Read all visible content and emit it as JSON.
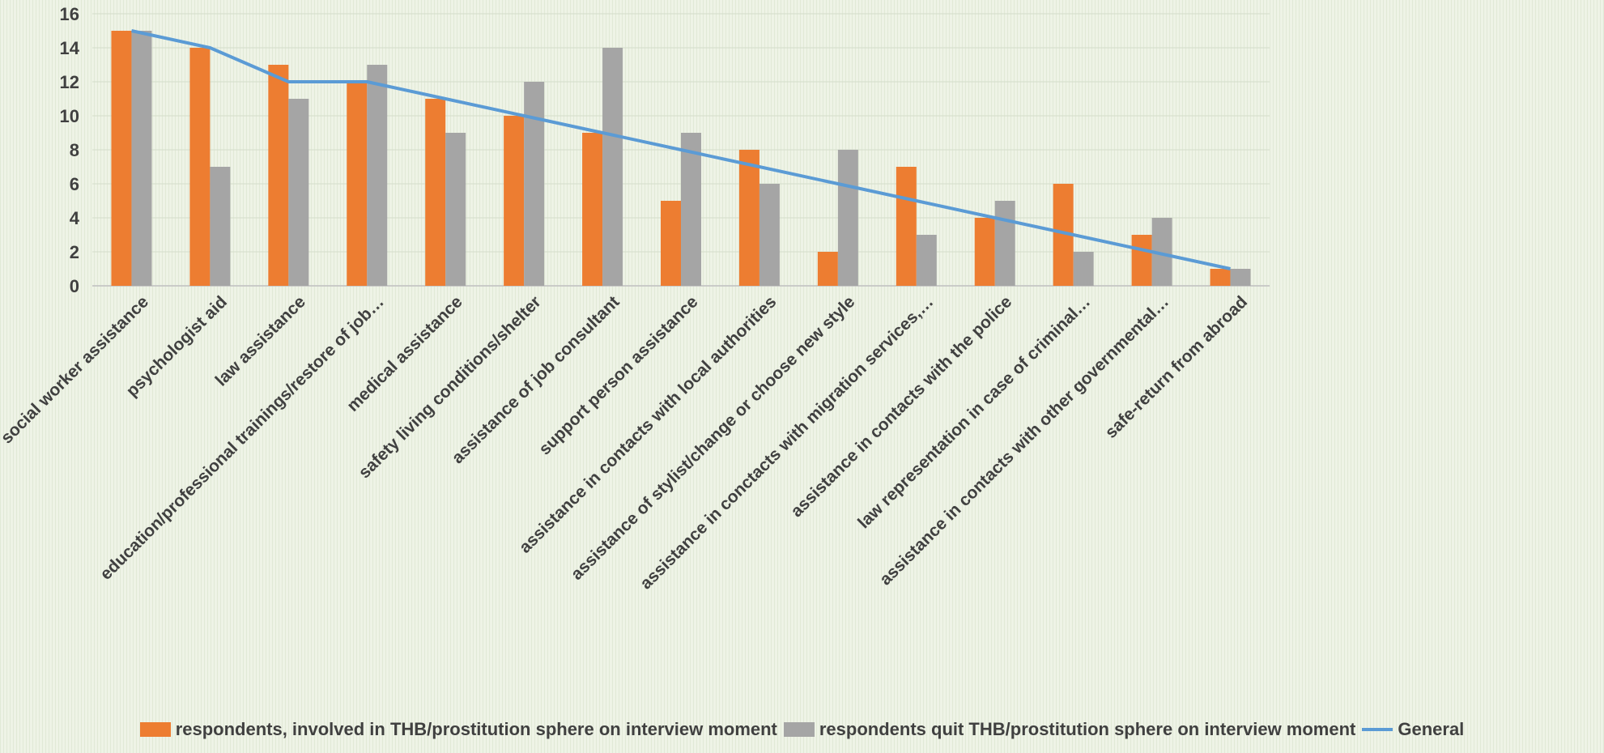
{
  "chart_data": {
    "type": "bar",
    "categories": [
      "social worker assistance",
      "psychologist aid",
      "law assistance",
      "education/professional trainings/restore of job…",
      "medical assistance",
      "safety living conditions/shelter",
      "assistance of job consultant",
      "support person assistance",
      "assistance in contacts with local authorities",
      "assistance of stylist/change or choose new style",
      "assistance in conctacts with migration services,…",
      "assistance in contacts with the police",
      "law representation in case of criminal…",
      "assistance in contacts with other governmental…",
      "safe-return from abroad"
    ],
    "series": [
      {
        "name": "respondents, involved in THB/prostitution sphere on interview moment",
        "type": "bar",
        "color": "#ed7d31",
        "values": [
          15,
          14,
          13,
          12,
          11,
          10,
          9,
          5,
          8,
          2,
          7,
          4,
          6,
          3,
          1
        ]
      },
      {
        "name": "respondents quit THB/prostitution sphere on interview moment",
        "type": "bar",
        "color": "#a5a5a5",
        "values": [
          15,
          7,
          11,
          13,
          9,
          12,
          14,
          9,
          6,
          8,
          3,
          5,
          2,
          4,
          1
        ]
      },
      {
        "name": "General",
        "type": "line",
        "color": "#5b9bd5",
        "values": [
          15,
          14,
          12,
          12,
          11,
          10,
          9,
          8,
          7,
          6,
          5,
          4,
          3,
          2,
          1
        ]
      }
    ],
    "ylim": [
      0,
      16
    ],
    "yticks": [
      0,
      2,
      4,
      6,
      8,
      10,
      12,
      14,
      16
    ],
    "grid": true,
    "legend_position": "bottom"
  }
}
